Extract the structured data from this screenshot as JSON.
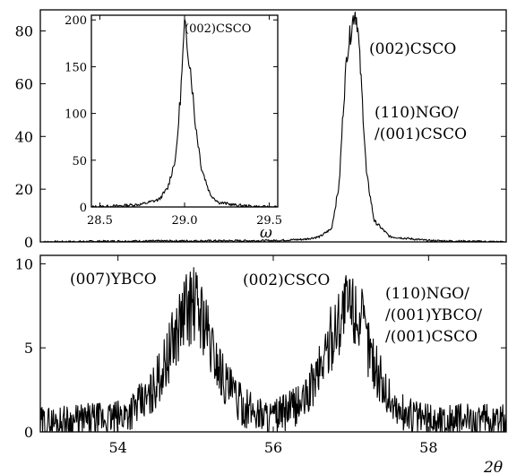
{
  "chart_data": [
    {
      "type": "line",
      "panel": "top",
      "xlabel": "",
      "ylabel": "",
      "xlim": [
        53.0,
        59.0
      ],
      "ylim": [
        0,
        88
      ],
      "y_ticks": [
        "0",
        "20",
        "40",
        "60",
        "80"
      ],
      "series": [
        {
          "x": [
            53.0,
            54.0,
            55.0,
            56.0,
            56.4,
            56.6,
            56.75,
            56.85,
            56.9,
            56.95,
            57.0,
            57.03,
            57.05,
            57.08,
            57.1,
            57.15,
            57.2,
            57.3,
            57.5,
            58.0,
            59.0
          ],
          "y": [
            0,
            0.3,
            0.4,
            0.5,
            1.0,
            2.0,
            5.0,
            22.0,
            50.0,
            72.0,
            80.0,
            85.0,
            88.0,
            84.0,
            76.0,
            52.0,
            26.0,
            8.0,
            2.0,
            0.5,
            0
          ]
        }
      ],
      "annotations": [
        "(002)CSCO",
        "(110)NGO/",
        "/(001)CSCO"
      ]
    },
    {
      "type": "line",
      "panel": "inset",
      "xlabel": "ω",
      "ylabel": "",
      "xlim": [
        28.45,
        29.55
      ],
      "ylim": [
        0,
        205
      ],
      "x_ticks": [
        "28.5",
        "29.0",
        "29.5"
      ],
      "y_ticks": [
        "0",
        "50",
        "100",
        "150",
        "200"
      ],
      "series": [
        {
          "x": [
            28.45,
            28.6,
            28.75,
            28.85,
            28.9,
            28.95,
            28.98,
            29.0,
            29.02,
            29.04,
            29.06,
            29.1,
            29.15,
            29.2,
            29.3,
            29.45,
            29.55
          ],
          "y": [
            0,
            1,
            3,
            8,
            20,
            55,
            130,
            192,
            170,
            140,
            95,
            42,
            14,
            5,
            2,
            0,
            0
          ]
        }
      ],
      "annotations": [
        "(002)CSCO"
      ]
    },
    {
      "type": "line",
      "panel": "bottom",
      "xlabel": "2θ",
      "ylabel": "",
      "xlim": [
        53.0,
        59.0
      ],
      "ylim": [
        0,
        10.5
      ],
      "x_ticks": [
        "54",
        "56",
        "58"
      ],
      "y_ticks": [
        "0",
        "5",
        "10"
      ],
      "series": [
        {
          "x": [
            53.0,
            54.0,
            54.4,
            54.6,
            54.8,
            54.9,
            55.0,
            55.1,
            55.2,
            55.4,
            55.6,
            56.0,
            56.4,
            56.6,
            56.8,
            56.9,
            57.0,
            57.1,
            57.2,
            57.4,
            57.6,
            58.0,
            59.0
          ],
          "y": [
            0.5,
            0.8,
            2.0,
            4.0,
            6.5,
            7.5,
            7.5,
            6.8,
            5.0,
            2.8,
            1.5,
            0.8,
            1.8,
            3.8,
            6.2,
            7.3,
            7.5,
            7.0,
            5.5,
            2.8,
            1.2,
            0.7,
            0.6
          ]
        }
      ],
      "annotations": [
        "(007)YBCO",
        "(002)CSCO",
        "(110)NGO/",
        "/(001)YBCO/",
        "/(001)CSCO"
      ]
    }
  ]
}
